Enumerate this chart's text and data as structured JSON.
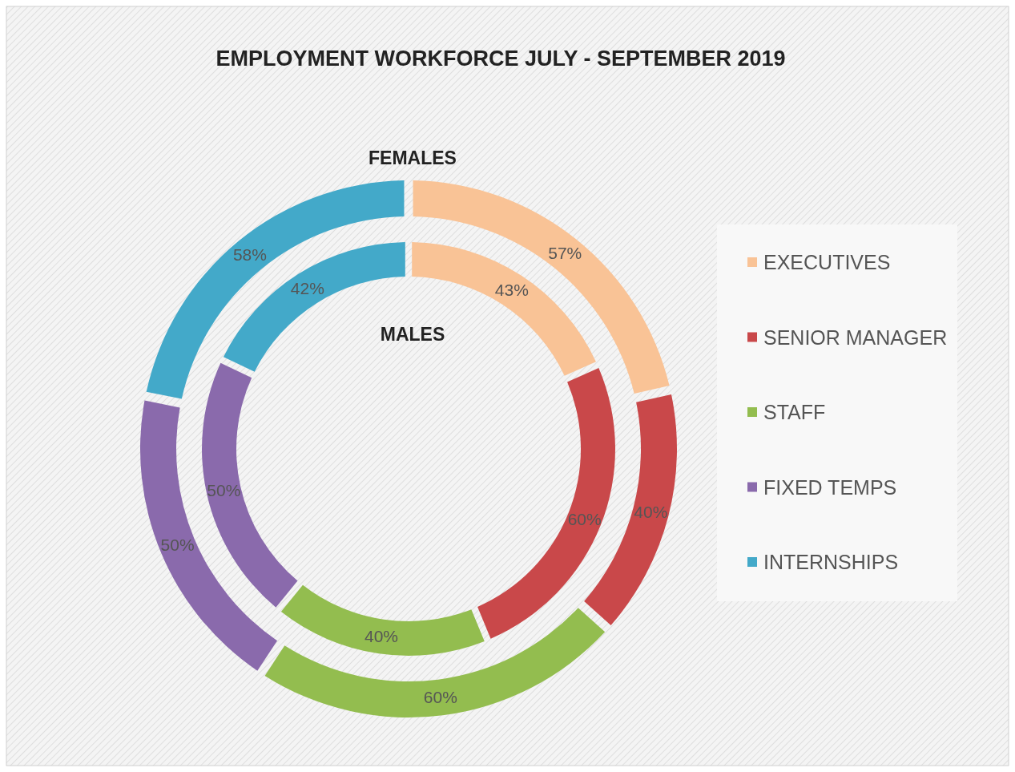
{
  "chart_data": {
    "type": "donut",
    "title": "EMPLOYMENT WORKFORCE JULY - SEPTEMBER 2019",
    "categories": [
      "EXECUTIVES",
      "SENIOR MANAGER",
      "STAFF",
      "FIXED TEMPS",
      "INTERNSHIPS"
    ],
    "colors": [
      "#f9c396",
      "#c9484a",
      "#93bd4f",
      "#8a6aac",
      "#43a9c9"
    ],
    "series": [
      {
        "name": "FEMALES",
        "values": [
          57,
          40,
          60,
          50,
          58
        ],
        "value_labels": [
          "57%",
          "40%",
          "60%",
          "50%",
          "58%"
        ]
      },
      {
        "name": "MALES",
        "values": [
          43,
          60,
          40,
          50,
          42
        ],
        "value_labels": [
          "43%",
          "60%",
          "40%",
          "50%",
          "42%"
        ]
      }
    ],
    "legend": "right"
  }
}
